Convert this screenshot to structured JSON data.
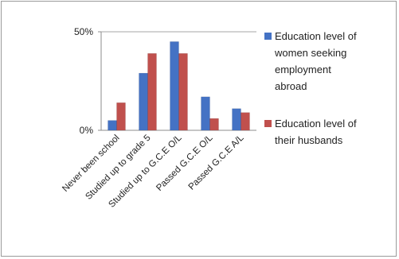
{
  "chart_data": {
    "type": "bar",
    "categories": [
      "Never been school",
      "Studied up to grade 5",
      "Studied up to G.C.E O/L",
      "Passed G.C.E O/L",
      "Passed G.C.E A/L"
    ],
    "series": [
      {
        "name_lines": [
          "Education level of",
          "women seeking",
          "employment",
          "abroad"
        ],
        "color": "#4472c4",
        "values": [
          5,
          29,
          45,
          17,
          11
        ]
      },
      {
        "name_lines": [
          "Education level of",
          "their husbands"
        ],
        "color": "#c0504d",
        "values": [
          14,
          39,
          39,
          6,
          9
        ]
      }
    ],
    "y_ticks": [
      "50%",
      "0%"
    ],
    "ylim": [
      0,
      50
    ],
    "grid": true,
    "legend_position": "right"
  }
}
